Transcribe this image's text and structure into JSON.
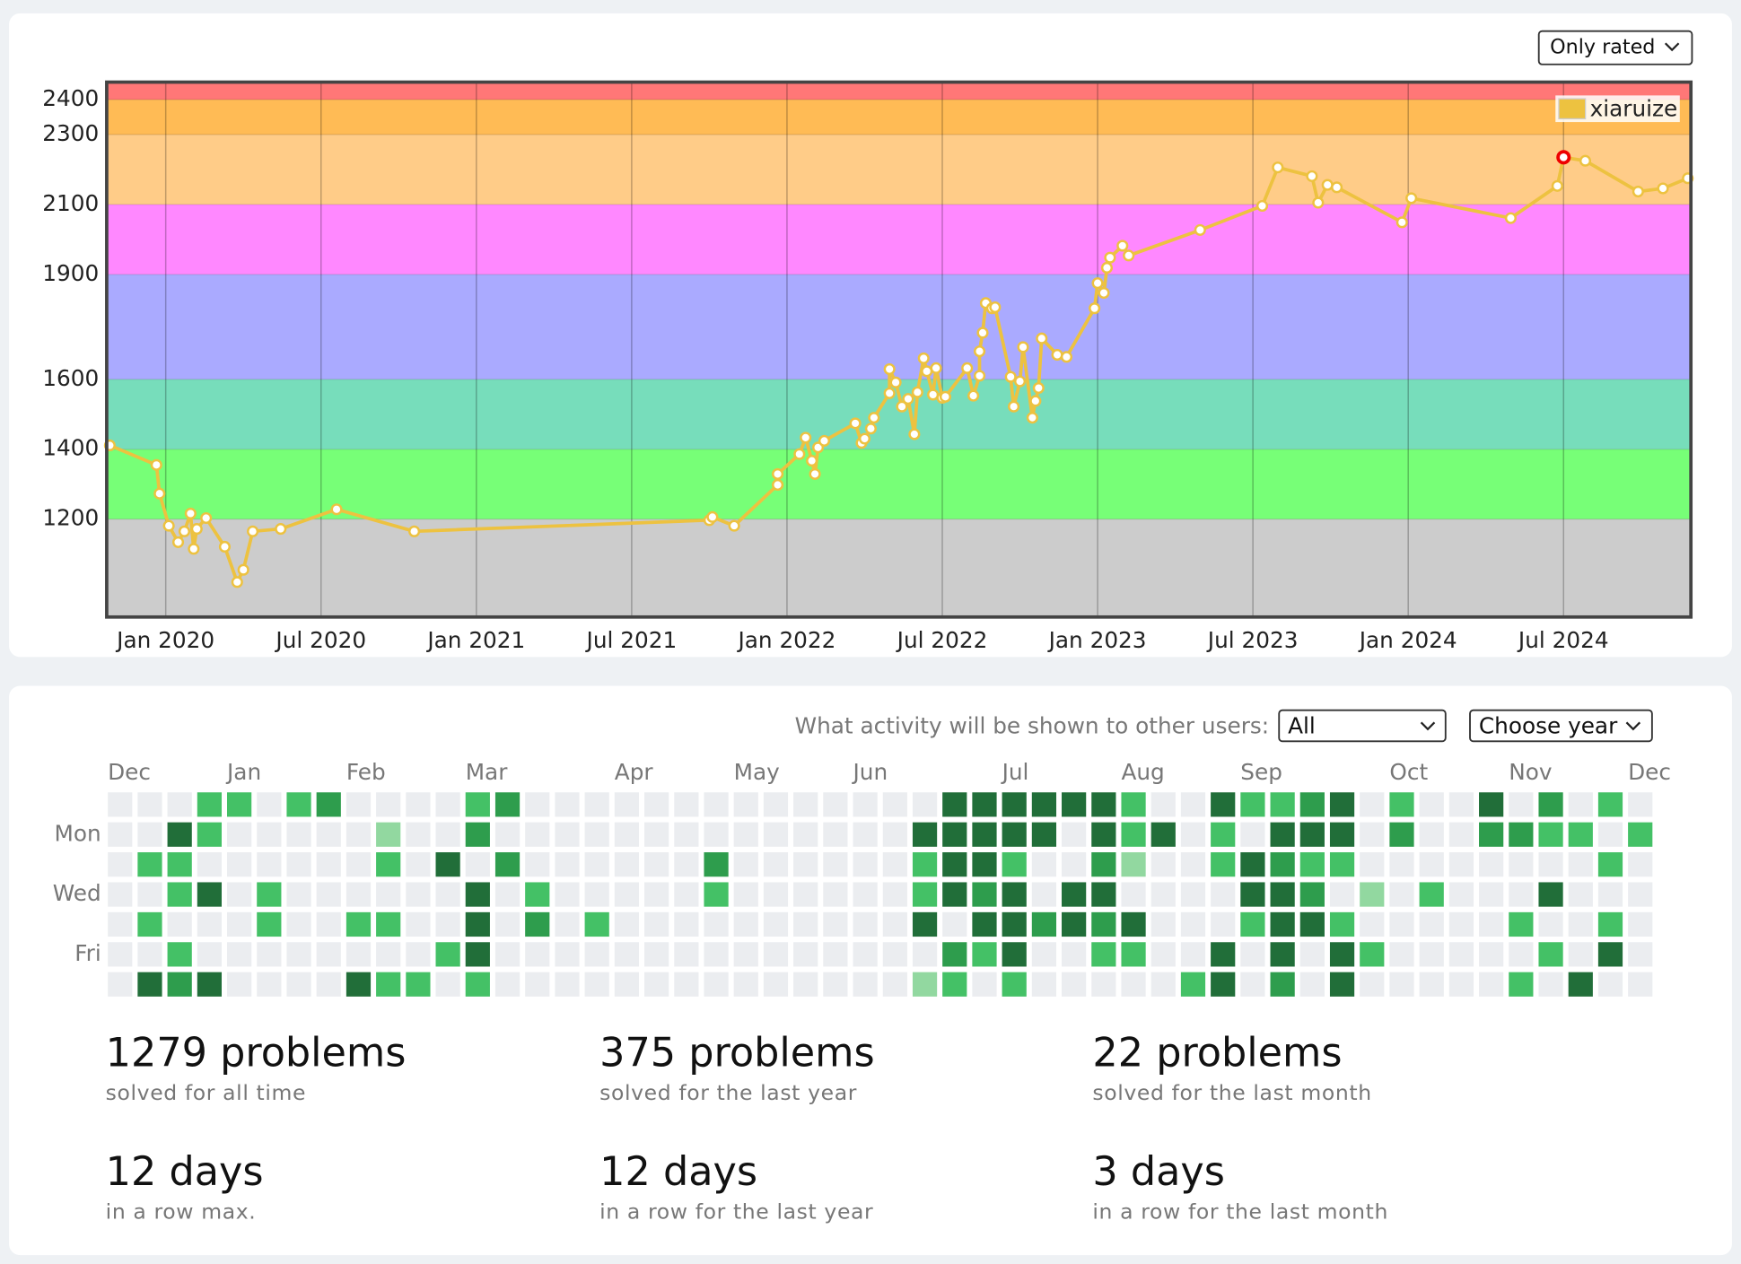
{
  "chart_data": {
    "type": "line",
    "filter": "Only rated",
    "xlim": [
      2019.81,
      2024.91
    ],
    "ylim": [
      920,
      2450
    ],
    "xticks": [
      {
        "value": 2020,
        "label": "Jan 2020"
      },
      {
        "value": 2020.5,
        "label": "Jul 2020"
      },
      {
        "value": 2021,
        "label": "Jan 2021"
      },
      {
        "value": 2021.5,
        "label": "Jul 2021"
      },
      {
        "value": 2022,
        "label": "Jan 2022"
      },
      {
        "value": 2022.5,
        "label": "Jul 2022"
      },
      {
        "value": 2023,
        "label": "Jan 2023"
      },
      {
        "value": 2023.5,
        "label": "Jul 2023"
      },
      {
        "value": 2024,
        "label": "Jan 2024"
      },
      {
        "value": 2024.5,
        "label": "Jul 2024"
      }
    ],
    "yticks": [
      1200,
      1400,
      1600,
      1900,
      2100,
      2300,
      2400
    ],
    "band_edges": [
      1200,
      1400,
      1600,
      1900,
      2100,
      2300,
      2400
    ],
    "band_colors": [
      "#cccccc",
      "#77ff77",
      "#77ddbb",
      "#aaaaff",
      "#ff88ff",
      "#ffcc88",
      "#ffbb55",
      "#ff7777"
    ],
    "grid": true,
    "legend": "top-right",
    "highlight_index": 82,
    "highlight_color": "#ee0000",
    "series": [
      {
        "name": "xiaruize",
        "color": "#edc240",
        "x": [
          2019.82,
          2019.97,
          2019.98,
          2020.01,
          2020.04,
          2020.06,
          2020.08,
          2020.09,
          2020.1,
          2020.13,
          2020.19,
          2020.23,
          2020.25,
          2020.28,
          2020.37,
          2020.55,
          2020.8,
          2021.75,
          2021.76,
          2021.83,
          2021.97,
          2021.97,
          2022.04,
          2022.06,
          2022.08,
          2022.09,
          2022.1,
          2022.12,
          2022.22,
          2022.24,
          2022.25,
          2022.27,
          2022.28,
          2022.33,
          2022.33,
          2022.35,
          2022.37,
          2022.39,
          2022.41,
          2022.42,
          2022.44,
          2022.45,
          2022.47,
          2022.48,
          2022.5,
          2022.51,
          2022.58,
          2022.6,
          2022.62,
          2022.62,
          2022.63,
          2022.64,
          2022.66,
          2022.67,
          2022.72,
          2022.73,
          2022.75,
          2022.76,
          2022.79,
          2022.8,
          2022.81,
          2022.82,
          2022.87,
          2022.9,
          2022.99,
          2023.0,
          2023.02,
          2023.03,
          2023.04,
          2023.08,
          2023.1,
          2023.33,
          2023.53,
          2023.58,
          2023.69,
          2023.71,
          2023.74,
          2023.77,
          2023.98,
          2024.01,
          2024.33,
          2024.48,
          2024.5,
          2024.57,
          2024.74,
          2024.82,
          2024.9
        ],
        "values": [
          1411,
          1355,
          1273,
          1181,
          1134,
          1165,
          1216,
          1115,
          1172,
          1203,
          1121,
          1020,
          1055,
          1165,
          1172,
          1228,
          1165,
          1197,
          1206,
          1181,
          1298,
          1329,
          1386,
          1433,
          1367,
          1329,
          1405,
          1424,
          1474,
          1418,
          1430,
          1459,
          1490,
          1560,
          1629,
          1591,
          1522,
          1544,
          1443,
          1563,
          1660,
          1623,
          1556,
          1632,
          1547,
          1550,
          1632,
          1553,
          1610,
          1680,
          1733,
          1818,
          1803,
          1806,
          1607,
          1522,
          1594,
          1692,
          1490,
          1538,
          1575,
          1717,
          1670,
          1664,
          1803,
          1875,
          1847,
          1919,
          1948,
          1982,
          1954,
          2027,
          2096,
          2206,
          2181,
          2105,
          2156,
          2149,
          2049,
          2118,
          2061,
          2153,
          2235,
          2225,
          2137,
          2146,
          2175
        ]
      }
    ]
  },
  "activity": {
    "visibility_label": "What activity will be shown to other users:",
    "visibility": "All",
    "year": "Choose year",
    "months": [
      "Dec",
      "Jan",
      "Feb",
      "Mar",
      "Apr",
      "May",
      "Jun",
      "Jul",
      "Aug",
      "Sep",
      "Oct",
      "Nov",
      "Dec"
    ],
    "days": [
      null,
      "Mon",
      null,
      "Wed",
      null,
      "Fri",
      null
    ],
    "level_colors": [
      "#ebedf0",
      "#92d8a0",
      "#44c166",
      "#2e9d4d",
      "#216e39"
    ],
    "rows": [
      [
        0,
        0,
        0,
        2,
        2,
        0,
        2,
        3,
        0,
        0,
        0,
        0,
        2,
        3,
        0,
        0,
        0,
        0,
        0,
        0,
        0,
        0,
        0,
        0,
        0,
        0,
        0,
        0,
        4,
        4,
        4,
        4,
        4,
        4,
        2,
        0,
        0,
        4,
        2,
        2,
        3,
        4,
        0,
        2,
        0,
        0,
        4,
        0,
        3,
        0,
        2,
        0
      ],
      [
        0,
        0,
        4,
        2,
        0,
        0,
        0,
        0,
        0,
        1,
        0,
        0,
        3,
        0,
        0,
        0,
        0,
        0,
        0,
        0,
        0,
        0,
        0,
        0,
        0,
        0,
        0,
        4,
        4,
        4,
        4,
        4,
        0,
        4,
        2,
        4,
        0,
        2,
        0,
        4,
        4,
        4,
        0,
        3,
        0,
        0,
        3,
        3,
        2,
        2,
        0,
        2
      ],
      [
        0,
        2,
        2,
        0,
        0,
        0,
        0,
        0,
        0,
        2,
        0,
        4,
        0,
        3,
        0,
        0,
        0,
        0,
        0,
        0,
        3,
        0,
        0,
        0,
        0,
        0,
        0,
        2,
        4,
        4,
        2,
        0,
        0,
        3,
        1,
        0,
        0,
        2,
        4,
        3,
        2,
        2,
        0,
        0,
        0,
        0,
        0,
        0,
        0,
        0,
        2,
        0
      ],
      [
        0,
        0,
        2,
        4,
        0,
        2,
        0,
        0,
        0,
        0,
        0,
        0,
        4,
        0,
        2,
        0,
        0,
        0,
        0,
        0,
        2,
        0,
        0,
        0,
        0,
        0,
        0,
        2,
        4,
        3,
        4,
        0,
        4,
        4,
        0,
        0,
        0,
        0,
        4,
        4,
        3,
        0,
        1,
        0,
        2,
        0,
        0,
        0,
        4,
        0,
        0,
        0
      ],
      [
        0,
        2,
        0,
        0,
        0,
        2,
        0,
        0,
        2,
        2,
        0,
        0,
        4,
        0,
        3,
        0,
        2,
        0,
        0,
        0,
        0,
        0,
        0,
        0,
        0,
        0,
        0,
        4,
        0,
        4,
        4,
        3,
        4,
        3,
        4,
        0,
        0,
        0,
        2,
        4,
        4,
        2,
        0,
        0,
        0,
        0,
        0,
        2,
        0,
        0,
        2,
        0
      ],
      [
        0,
        0,
        2,
        0,
        0,
        0,
        0,
        0,
        0,
        0,
        0,
        2,
        4,
        0,
        0,
        0,
        0,
        0,
        0,
        0,
        0,
        0,
        0,
        0,
        0,
        0,
        0,
        0,
        3,
        2,
        4,
        0,
        0,
        2,
        2,
        0,
        0,
        4,
        0,
        4,
        0,
        4,
        2,
        0,
        0,
        0,
        0,
        0,
        2,
        0,
        4,
        0
      ],
      [
        0,
        4,
        3,
        4,
        0,
        0,
        0,
        0,
        4,
        2,
        2,
        0,
        2,
        0,
        0,
        0,
        0,
        0,
        0,
        0,
        0,
        0,
        0,
        0,
        0,
        0,
        0,
        1,
        2,
        0,
        2,
        0,
        0,
        0,
        0,
        0,
        2,
        4,
        0,
        3,
        0,
        4,
        0,
        0,
        0,
        0,
        0,
        2,
        0,
        4,
        0,
        0
      ]
    ]
  },
  "stats": [
    {
      "value": "1279 problems",
      "caption": "solved for all time"
    },
    {
      "value": "375 problems",
      "caption": "solved for the last year"
    },
    {
      "value": "22 problems",
      "caption": "solved for the last month"
    },
    {
      "value": "12 days",
      "caption": "in a row max."
    },
    {
      "value": "12 days",
      "caption": "in a row for the last year"
    },
    {
      "value": "3 days",
      "caption": "in a row for the last month"
    }
  ]
}
